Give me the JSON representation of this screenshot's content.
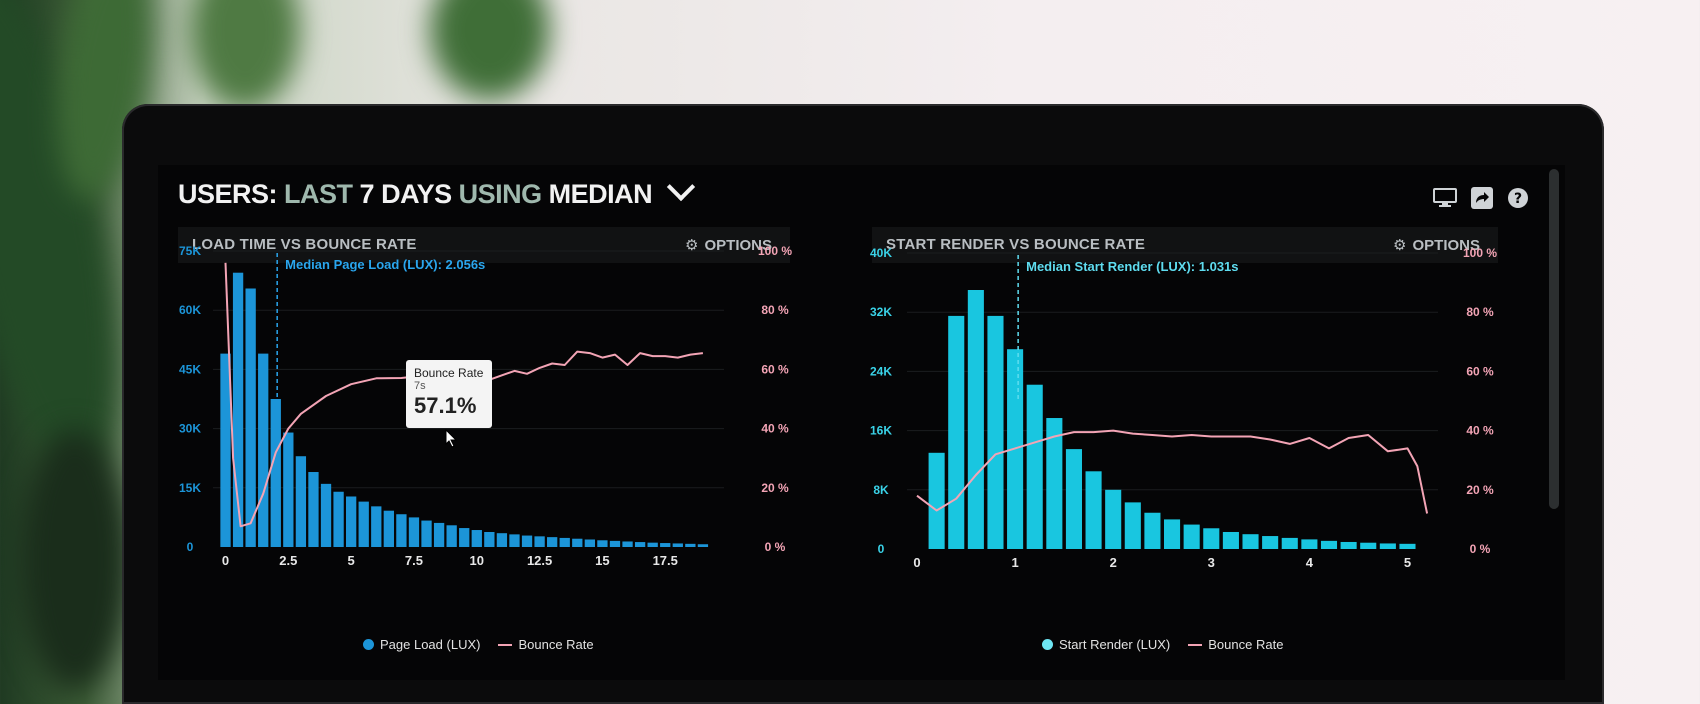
{
  "header": {
    "prefix": "USERS:",
    "range": "LAST",
    "days": "7 DAYS",
    "using": "USING",
    "stat": "MEDIAN"
  },
  "top_icons": [
    "monitor-icon",
    "share-icon",
    "help-icon"
  ],
  "colors": {
    "bar_left": "#1c95d8",
    "bar_right": "#19c6e0",
    "bounce": "#f3a4b5",
    "annotation": "#2aa6ee"
  },
  "left_panel": {
    "title": "LOAD TIME VS BOUNCE RATE",
    "options": "OPTIONS",
    "tooltip": {
      "label": "Bounce Rate",
      "sub": "7s",
      "value": "57.1%"
    },
    "legend": {
      "bars": "Page Load (LUX)",
      "line": "Bounce Rate"
    }
  },
  "right_panel": {
    "title": "START RENDER VS BOUNCE RATE",
    "options": "OPTIONS",
    "legend": {
      "bars": "Start Render (LUX)",
      "line": "Bounce Rate"
    }
  },
  "chart_data": [
    {
      "type": "bar",
      "title": "LOAD TIME VS BOUNCE RATE",
      "x_ticks": [
        "0",
        "2.5",
        "5",
        "7.5",
        "10",
        "12.5",
        "15",
        "17.5"
      ],
      "xlim": [
        -0.1,
        19.6
      ],
      "left_ticks": [
        "0",
        "15K",
        "30K",
        "45K",
        "60K",
        "75K"
      ],
      "right_ticks": [
        "0 %",
        "20 %",
        "40 %",
        "60 %",
        "80 %",
        "100 %"
      ],
      "ylim": [
        0,
        75000
      ],
      "annotation": "Median Page Load (LUX): 2.056s",
      "annotation_x": 2.056,
      "bar_width": 0.5,
      "series": [
        {
          "name": "Page Load (LUX)",
          "x": [
            0,
            0.5,
            1,
            1.5,
            2,
            2.5,
            3,
            3.5,
            4,
            4.5,
            5,
            5.5,
            6,
            6.5,
            7,
            7.5,
            8,
            8.5,
            9,
            9.5,
            10,
            10.5,
            11,
            11.5,
            12,
            12.5,
            13,
            13.5,
            14,
            14.5,
            15,
            15.5,
            16,
            16.5,
            17,
            17.5,
            18,
            18.5,
            19
          ],
          "values": [
            49000,
            69500,
            65500,
            49000,
            37500,
            29000,
            23000,
            19000,
            16000,
            14000,
            12800,
            11500,
            10300,
            9200,
            8300,
            7500,
            6700,
            6100,
            5500,
            4800,
            4300,
            3800,
            3500,
            3200,
            2900,
            2700,
            2500,
            2300,
            2100,
            1900,
            1700,
            1550,
            1400,
            1250,
            1100,
            1000,
            900,
            800,
            700
          ]
        },
        {
          "name": "Bounce Rate",
          "axis": "right",
          "x": [
            0,
            0.3,
            0.6,
            1,
            1.5,
            2,
            2.5,
            3,
            4,
            5,
            6,
            7,
            8,
            9,
            10,
            10.5,
            11,
            11.5,
            12,
            12.5,
            13,
            13.5,
            14,
            14.5,
            15,
            15.5,
            16,
            16.5,
            17,
            17.5,
            18,
            18.5,
            19
          ],
          "values": [
            96,
            30,
            7,
            8,
            18,
            32,
            40,
            45,
            51,
            55,
            57,
            57.1,
            58,
            58.5,
            57.5,
            56.5,
            58,
            59.5,
            58.5,
            60.5,
            62,
            61.5,
            66,
            65.5,
            64,
            65,
            61.5,
            65.5,
            64.5,
            64.5,
            64,
            65,
            65.5
          ]
        }
      ]
    },
    {
      "type": "bar",
      "title": "START RENDER VS BOUNCE RATE",
      "x_ticks": [
        "0",
        "1",
        "2",
        "3",
        "4",
        "5"
      ],
      "xlim": [
        0,
        5.25
      ],
      "left_ticks": [
        "0",
        "8K",
        "16K",
        "24K",
        "32K",
        "40K"
      ],
      "right_ticks": [
        "0 %",
        "20 %",
        "40 %",
        "60 %",
        "80 %",
        "100 %"
      ],
      "ylim": [
        0,
        40000
      ],
      "annotation": "Median Start Render (LUX): 1.031s",
      "annotation_x": 1.031,
      "bar_width": 0.2,
      "series": [
        {
          "name": "Start Render (LUX)",
          "x": [
            0.2,
            0.4,
            0.6,
            0.8,
            1.0,
            1.2,
            1.4,
            1.6,
            1.8,
            2.0,
            2.2,
            2.4,
            2.6,
            2.8,
            3.0,
            3.2,
            3.4,
            3.6,
            3.8,
            4.0,
            4.2,
            4.4,
            4.6,
            4.8,
            5.0
          ],
          "values": [
            13000,
            31500,
            35000,
            31500,
            27000,
            22200,
            17700,
            13500,
            10500,
            8000,
            6300,
            4900,
            4000,
            3300,
            2800,
            2300,
            2000,
            1750,
            1500,
            1300,
            1100,
            950,
            850,
            750,
            700
          ]
        },
        {
          "name": "Bounce Rate",
          "axis": "right",
          "x": [
            0,
            0.2,
            0.4,
            0.6,
            0.8,
            1.0,
            1.2,
            1.4,
            1.6,
            1.8,
            2.0,
            2.2,
            2.4,
            2.6,
            2.8,
            3.0,
            3.2,
            3.4,
            3.6,
            3.8,
            4.0,
            4.2,
            4.4,
            4.6,
            4.8,
            5.0,
            5.1,
            5.2
          ],
          "values": [
            18,
            13,
            17,
            25,
            32,
            34,
            36,
            38,
            39.5,
            39.5,
            40,
            39,
            38.5,
            38,
            38.5,
            38,
            38,
            38,
            37,
            35.5,
            37.5,
            34,
            37.5,
            38.5,
            33,
            34,
            28,
            12
          ]
        }
      ]
    }
  ]
}
